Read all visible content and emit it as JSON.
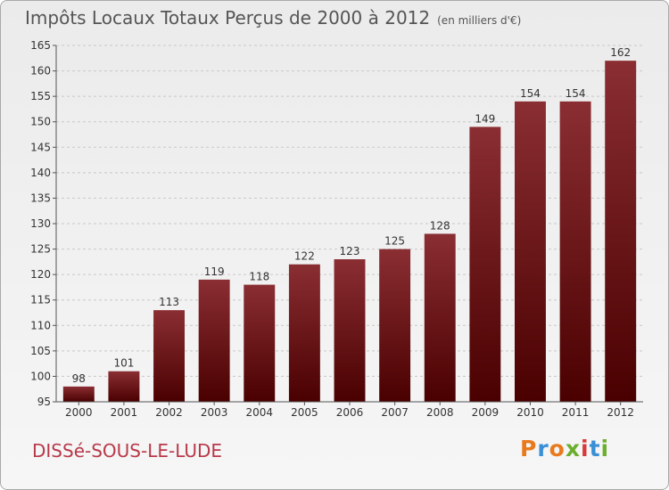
{
  "title": "Impôts Locaux Totaux Perçus de 2000 à 2012",
  "unit": "(en milliers d'€)",
  "commune": "DISSé-SOUS-LE-LUDE",
  "logo": {
    "letters": [
      "P",
      "r",
      "o",
      "x",
      "i",
      "t",
      "i"
    ],
    "colors": [
      "#e87a1d",
      "#3a8fd6",
      "#e87a1d",
      "#6cae2e",
      "#d63a3a",
      "#3a8fd6",
      "#6cae2e"
    ]
  },
  "chart_data": {
    "type": "bar",
    "title": "Impôts Locaux Totaux Perçus de 2000 à 2012",
    "xlabel": "",
    "ylabel": "en milliers d'€",
    "categories": [
      "2000",
      "2001",
      "2002",
      "2003",
      "2004",
      "2005",
      "2006",
      "2007",
      "2008",
      "2009",
      "2010",
      "2011",
      "2012"
    ],
    "values": [
      98,
      101,
      113,
      119,
      118,
      122,
      123,
      125,
      128,
      149,
      154,
      154,
      162
    ],
    "ylim": [
      95,
      165
    ],
    "yticks": [
      95,
      100,
      105,
      110,
      115,
      120,
      125,
      130,
      135,
      140,
      145,
      150,
      155,
      160,
      165
    ],
    "grid": true,
    "bar_color_top": "#8a2e33",
    "bar_color_bottom": "#4a0000"
  }
}
